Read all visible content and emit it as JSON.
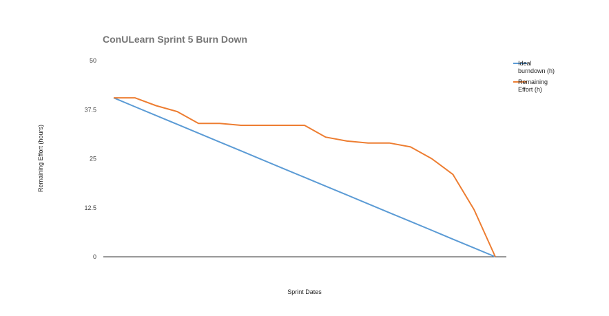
{
  "chart_data": {
    "type": "line",
    "title": "ConULearn Sprint 5 Burn Down",
    "xlabel": "Sprint Dates",
    "ylabel": "Remaining Effort (hours)",
    "ylim": [
      0,
      50
    ],
    "yticks": [
      "0",
      "12.5",
      "25",
      "37.5",
      "50"
    ],
    "grid": false,
    "legend_position": "right",
    "x": [
      0,
      1,
      2,
      3,
      4,
      5,
      6,
      7,
      8,
      9,
      10,
      11,
      12,
      13,
      14,
      15,
      16,
      17,
      18
    ],
    "series": [
      {
        "name": "Ideal burndown (h)",
        "name_lines": [
          "Ideal",
          "burndown (h)"
        ],
        "color": "#5b9bd5",
        "values": [
          40.5,
          38.25,
          36,
          33.75,
          31.5,
          29.25,
          27,
          24.75,
          22.5,
          20.25,
          18,
          15.75,
          13.5,
          11.25,
          9,
          6.75,
          4.5,
          2.25,
          0
        ]
      },
      {
        "name": "Remaining Effort (h)",
        "name_lines": [
          "Remaining",
          "Effort (h)"
        ],
        "color": "#ed7d31",
        "values": [
          40.5,
          40.5,
          38.5,
          37,
          34,
          34,
          33.5,
          33.5,
          33.5,
          33.5,
          30.5,
          29.5,
          29,
          29,
          28,
          25,
          21,
          12,
          0
        ]
      }
    ]
  }
}
